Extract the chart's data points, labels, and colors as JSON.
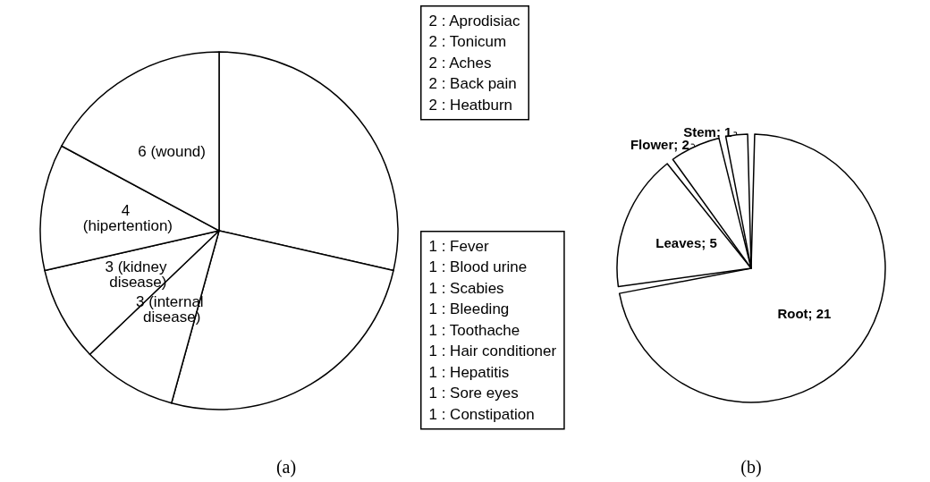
{
  "chart_data": [
    {
      "type": "pie",
      "title": "(a)",
      "categories": [
        null,
        null,
        "3 (internal disease)",
        "3 (kidney disease)",
        "4 (hipertention)",
        "6 (wound)"
      ],
      "values": [
        10,
        9,
        3,
        3,
        4,
        6
      ],
      "colors": [
        "#ffffff",
        "#ffffff",
        "#ffffff",
        "#ffffff",
        "#ffffff",
        "#ffffff"
      ],
      "annotations": [
        "2 : Aprodisiac\n2 : Tonicum\n2 : Aches\n2 : Back pain\n2 : Heatburn",
        "1 : Fever\n1 : Blood urine\n1 : Scabies\n1 : Bleeding\n1 : Toothache\n1 : Hair conditioner\n1 : Hepatitis\n1 : Sore eyes\n1 : Constipation"
      ]
    },
    {
      "type": "pie",
      "title": "(b)",
      "categories": [
        "Root",
        "Leaves",
        "Flower",
        "Stem"
      ],
      "values": [
        21,
        5,
        2,
        1
      ],
      "colors": [
        "#ffffff",
        "#ffffff",
        "#ffffff",
        "#ffffff"
      ],
      "value_labels": [
        "21",
        "5",
        "2",
        "1"
      ]
    }
  ]
}
